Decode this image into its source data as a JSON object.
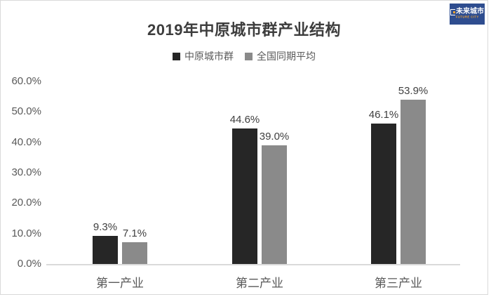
{
  "page": {
    "background": "#ffffff",
    "card_border_color": "#d9d9d9"
  },
  "logo": {
    "name": "未来城市",
    "subtitle": "FUTURE CITY",
    "bg_color": "#2e4d8f",
    "text_color": "#ffffff",
    "accent_color": "#f0a330"
  },
  "chart_data": {
    "type": "bar",
    "title": "2019年中原城市群产业结构",
    "categories": [
      "第一产业",
      "第二产业",
      "第三产业"
    ],
    "series": [
      {
        "name": "中原城市群",
        "color": "#262626",
        "values": [
          9.3,
          44.6,
          46.1
        ],
        "labels": [
          "9.3%",
          "44.6%",
          "46.1%"
        ]
      },
      {
        "name": "全国同期平均",
        "color": "#8a8a8a",
        "values": [
          7.1,
          39.0,
          53.9
        ],
        "labels": [
          "7.1%",
          "39.0%",
          "53.9%"
        ]
      }
    ],
    "y_axis": {
      "min": 0,
      "max": 60,
      "step": 10,
      "tick_labels": [
        "0.0%",
        "10.0%",
        "20.0%",
        "30.0%",
        "40.0%",
        "50.0%",
        "60.0%"
      ]
    },
    "xlabel": "",
    "ylabel": "",
    "legend_position": "top",
    "grid": false,
    "label_color": "#404040",
    "axis_text_color": "#595959",
    "baseline_color": "#dadada"
  }
}
